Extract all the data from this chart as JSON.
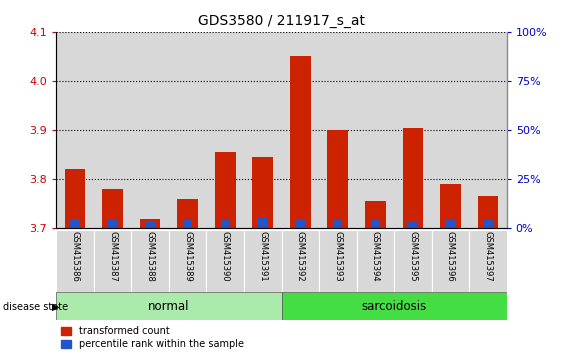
{
  "title": "GDS3580 / 211917_s_at",
  "samples": [
    "GSM415386",
    "GSM415387",
    "GSM415388",
    "GSM415389",
    "GSM415390",
    "GSM415391",
    "GSM415392",
    "GSM415393",
    "GSM415394",
    "GSM415395",
    "GSM415396",
    "GSM415397"
  ],
  "red_values": [
    3.82,
    3.78,
    3.72,
    3.76,
    3.855,
    3.845,
    4.05,
    3.9,
    3.755,
    3.905,
    3.79,
    3.765
  ],
  "blue_percentiles": [
    5,
    4,
    3,
    4,
    5,
    6,
    5,
    5,
    4,
    3,
    5,
    4
  ],
  "ymin": 3.7,
  "ymax": 4.1,
  "yticks": [
    3.7,
    3.8,
    3.9,
    4.0,
    4.1
  ],
  "right_yticks": [
    0,
    25,
    50,
    75,
    100
  ],
  "normal_color": "#AAEAAA",
  "sarcoidosis_color": "#44DD44",
  "bar_width": 0.55,
  "red_color": "#CC2200",
  "blue_color": "#2255CC",
  "left_tick_color": "#CC0000",
  "right_tick_color": "#0000CC",
  "background_color": "#FFFFFF",
  "panel_color": "#D8D8D8",
  "spine_color": "#888888"
}
